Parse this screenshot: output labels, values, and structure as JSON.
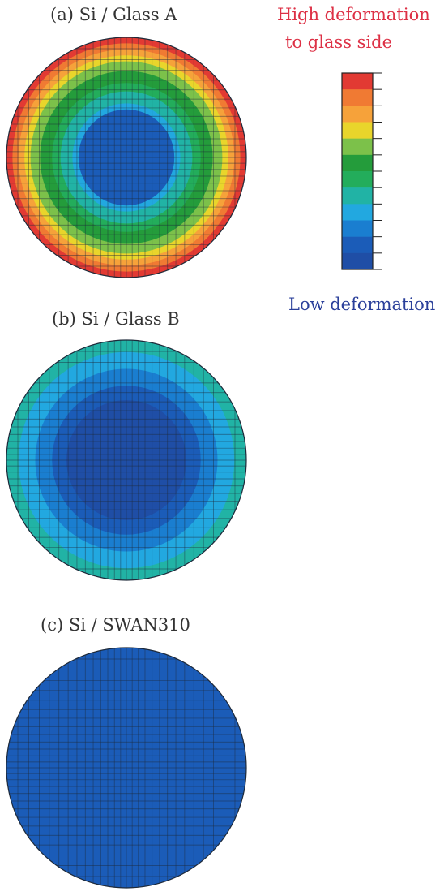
{
  "colors": {
    "scale": [
      "#1f4ea6",
      "#1b5cb8",
      "#1a7ed0",
      "#22a8e0",
      "#21b3a5",
      "#23ad5b",
      "#249c3b",
      "#7cc14a",
      "#e9d52b",
      "#f6a23a",
      "#f07a33",
      "#e23a33"
    ],
    "grid_line": "#1e2a3a",
    "high_text": "#dd3045",
    "low_text": "#2a3f9a",
    "title_text": "#333333"
  },
  "legend": {
    "high_label_line1": "High deformation",
    "high_label_line2": "to glass side",
    "low_label": "Low deformation"
  },
  "panels": [
    {
      "label": "(a) Si / Glass A",
      "rings": [
        {
          "r": 1.0,
          "level": 11
        },
        {
          "r": 0.95,
          "level": 10
        },
        {
          "r": 0.9,
          "level": 9
        },
        {
          "r": 0.85,
          "level": 8
        },
        {
          "r": 0.8,
          "level": 7
        },
        {
          "r": 0.72,
          "level": 6
        },
        {
          "r": 0.62,
          "level": 5
        },
        {
          "r": 0.55,
          "level": 4
        },
        {
          "r": 0.45,
          "level": 3
        },
        {
          "r": 0.4,
          "level": 1
        }
      ]
    },
    {
      "label": "(b) Si / Glass B",
      "rings": [
        {
          "r": 1.0,
          "level": 4
        },
        {
          "r": 0.9,
          "level": 3
        },
        {
          "r": 0.76,
          "level": 2
        },
        {
          "r": 0.62,
          "level": 1
        },
        {
          "r": 0.5,
          "level": 0
        }
      ]
    },
    {
      "label": "(c) Si / SWAN310",
      "rings": [
        {
          "r": 1.0,
          "level": 1
        }
      ]
    }
  ]
}
